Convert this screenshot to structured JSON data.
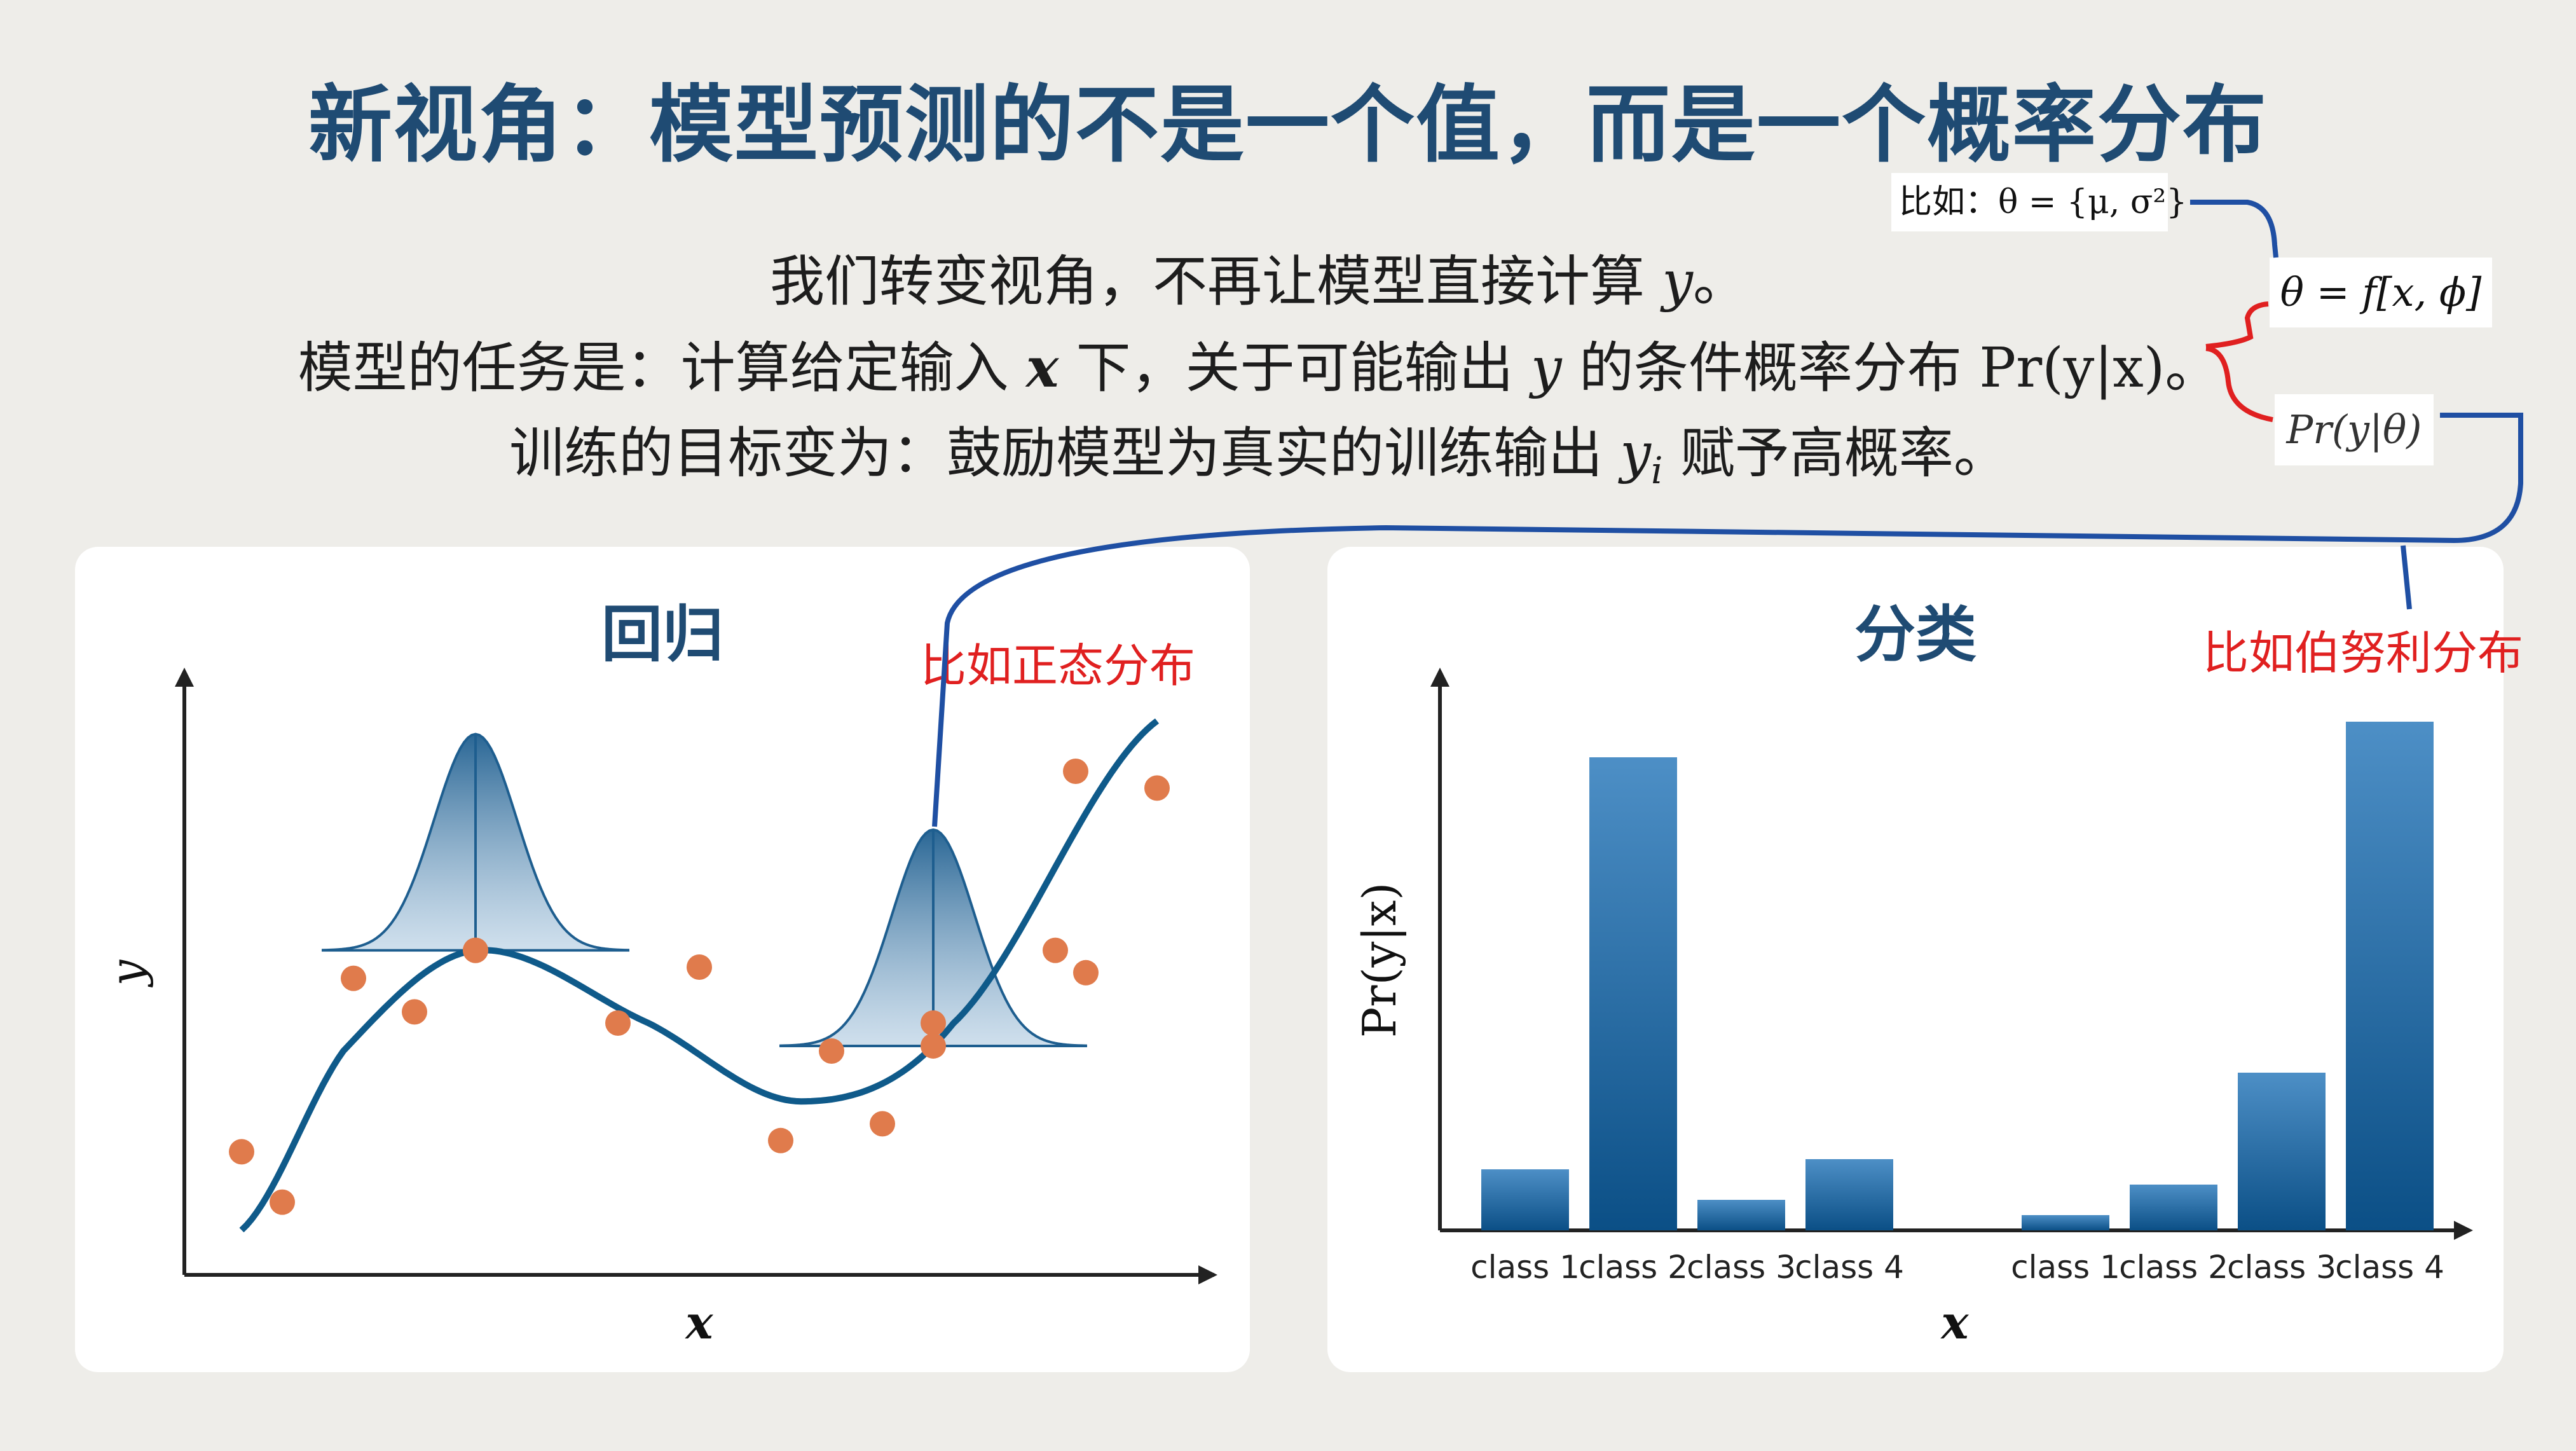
{
  "title": "新视角：模型预测的不是一个值，而是一个概率分布",
  "intro": {
    "line1_a": "我们转变视角，不再让模型直接计算 ",
    "line1_var": "y",
    "line1_b": "。",
    "line2_a": "模型的任务是：计算给定输入 ",
    "line2_x": "x",
    "line2_b": " 下，关于可能输出 ",
    "line2_y": "y",
    "line2_c": " 的条件概率分布 ",
    "line2_expr": "Pr(y|x)",
    "line2_d": "。",
    "line3_a": "训练的目标变为：鼓励模型为真实的训练输出 ",
    "line3_var": "y",
    "line3_sub": "i",
    "line3_b": " 赋予高概率。"
  },
  "annotations": {
    "theta_example": "比如：θ = {μ, σ²}",
    "theta_func": "θ = f[x, ϕ]",
    "pr_theta": "Pr(y|θ)",
    "normal_note": "比如正态分布",
    "bernoulli_note": "比如伯努利分布"
  },
  "regression": {
    "title": "回归",
    "xlabel": "x",
    "ylabel": "y"
  },
  "classification": {
    "title": "分类",
    "xlabel": "x",
    "ylabel": "Pr(y|x)"
  },
  "colors": {
    "title": "#1f4b73",
    "curve": "#0f5a8a",
    "dots": "#e07b4c",
    "bar_top": "#4d8fc6",
    "bar_bottom": "#0b4f86",
    "annotation_red": "#e02020",
    "annotation_blue": "#1f4fa3"
  },
  "chart_data": [
    {
      "type": "scatter",
      "title": "回归",
      "xlabel": "x",
      "ylabel": "y",
      "points": [
        {
          "x": 0.05,
          "y": 0.22
        },
        {
          "x": 0.09,
          "y": 0.13
        },
        {
          "x": 0.16,
          "y": 0.53
        },
        {
          "x": 0.22,
          "y": 0.47
        },
        {
          "x": 0.28,
          "y": 0.58
        },
        {
          "x": 0.42,
          "y": 0.45
        },
        {
          "x": 0.5,
          "y": 0.55
        },
        {
          "x": 0.58,
          "y": 0.24
        },
        {
          "x": 0.63,
          "y": 0.4
        },
        {
          "x": 0.68,
          "y": 0.27
        },
        {
          "x": 0.73,
          "y": 0.45
        },
        {
          "x": 0.85,
          "y": 0.58
        },
        {
          "x": 0.88,
          "y": 0.54
        },
        {
          "x": 0.87,
          "y": 0.9
        },
        {
          "x": 0.95,
          "y": 0.87
        }
      ],
      "curve": [
        {
          "x": 0.05,
          "y": 0.08
        },
        {
          "x": 0.15,
          "y": 0.4
        },
        {
          "x": 0.28,
          "y": 0.58
        },
        {
          "x": 0.45,
          "y": 0.45
        },
        {
          "x": 0.6,
          "y": 0.31
        },
        {
          "x": 0.75,
          "y": 0.45
        },
        {
          "x": 0.95,
          "y": 0.99
        }
      ],
      "distributions_at_x": [
        0.28,
        0.73
      ]
    },
    {
      "type": "bar",
      "title": "分类",
      "xlabel": "x",
      "ylabel": "Pr(y|x)",
      "groups": [
        {
          "categories": [
            "class 1",
            "class 2",
            "class 3",
            "class 4"
          ],
          "values": [
            0.12,
            0.93,
            0.06,
            0.14
          ]
        },
        {
          "categories": [
            "class 1",
            "class 2",
            "class 3",
            "class 4"
          ],
          "values": [
            0.03,
            0.09,
            0.31,
            1.0
          ]
        }
      ],
      "ylim": [
        0,
        1.05
      ]
    }
  ]
}
